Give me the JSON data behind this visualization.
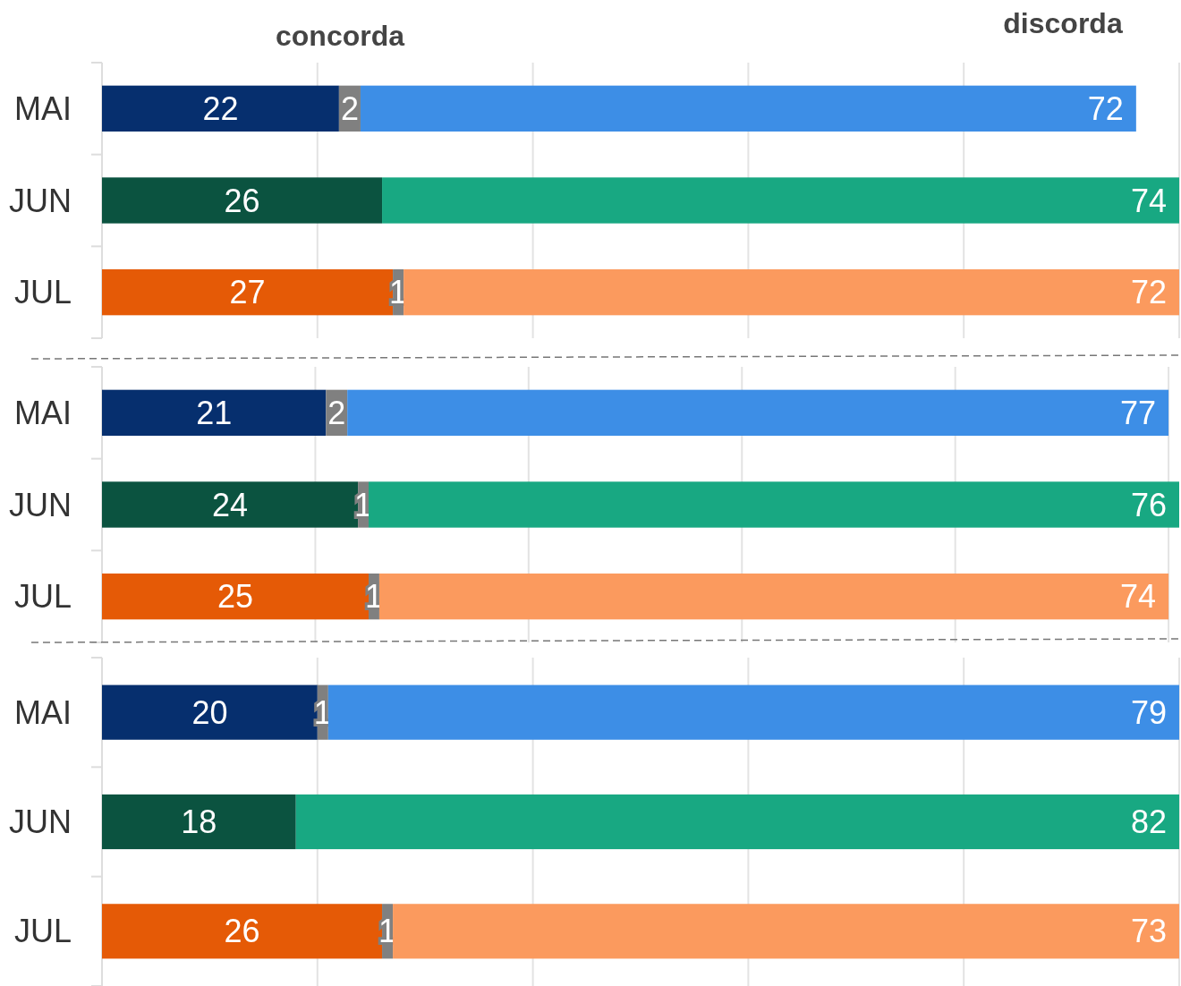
{
  "chart_data": [
    {
      "type": "bar",
      "orientation": "horizontal",
      "stacked": true,
      "categories": [
        "MAI",
        "JUN",
        "JUL"
      ],
      "xlim": [
        0,
        100
      ],
      "xticks": [
        {
          "value": 0,
          "label": null
        },
        {
          "value": 20,
          "label": null
        },
        {
          "value": 40,
          "label": null
        },
        {
          "value": 60,
          "label": null
        },
        {
          "value": 80,
          "label": null
        },
        {
          "value": 100,
          "label": null
        }
      ],
      "tick_labels": "y",
      "grid": "x",
      "data_labels": true,
      "annotations": [
        "concorda",
        "discorda"
      ],
      "series": [
        {
          "colors": [
            "#062f6e",
            "#0b5340",
            "#e55a06"
          ],
          "values": [
            22,
            26,
            27
          ]
        },
        {
          "colors": [
            "#808080",
            "#808080",
            "#808080"
          ],
          "values": [
            2,
            null,
            1
          ]
        },
        {
          "colors": [
            "#3d8ee6",
            "#18a882",
            "#fb9a5e"
          ],
          "values": [
            72,
            74,
            72
          ]
        }
      ]
    },
    {
      "type": "bar",
      "orientation": "horizontal",
      "stacked": true,
      "categories": [
        "MAI",
        "JUN",
        "JUL"
      ],
      "xlim": [
        0,
        101
      ],
      "xticks": [
        {
          "value": 0,
          "label": null
        },
        {
          "value": 20,
          "label": null
        },
        {
          "value": 40,
          "label": null
        },
        {
          "value": 60,
          "label": null
        },
        {
          "value": 80,
          "label": null
        },
        {
          "value": 100,
          "label": null
        }
      ],
      "tick_labels": "y",
      "grid": "x",
      "data_labels": true,
      "series": [
        {
          "colors": [
            "#062f6e",
            "#0b5340",
            "#e55a06"
          ],
          "values": [
            21,
            24,
            25
          ]
        },
        {
          "colors": [
            "#808080",
            "#808080",
            "#808080"
          ],
          "values": [
            2,
            1,
            1
          ]
        },
        {
          "colors": [
            "#3d8ee6",
            "#18a882",
            "#fb9a5e"
          ],
          "values": [
            77,
            76,
            74
          ]
        }
      ]
    },
    {
      "type": "bar",
      "orientation": "horizontal",
      "stacked": true,
      "categories": [
        "MAI",
        "JUN",
        "JUL"
      ],
      "xlim": [
        0,
        100
      ],
      "xticks": [
        {
          "value": 0,
          "label": null
        },
        {
          "value": 20,
          "label": null
        },
        {
          "value": 40,
          "label": null
        },
        {
          "value": 60,
          "label": null
        },
        {
          "value": 80,
          "label": null
        },
        {
          "value": 100,
          "label": null
        }
      ],
      "tick_labels": "y",
      "grid": "x",
      "data_labels": true,
      "series": [
        {
          "colors": [
            "#062f6e",
            "#0b5340",
            "#e55a06"
          ],
          "values": [
            20,
            18,
            26
          ]
        },
        {
          "colors": [
            "#808080",
            "#808080",
            "#808080"
          ],
          "values": [
            1,
            null,
            1
          ]
        },
        {
          "colors": [
            "#3d8ee6",
            "#18a882",
            "#fb9a5e"
          ],
          "values": [
            79,
            82,
            73
          ]
        }
      ]
    }
  ]
}
